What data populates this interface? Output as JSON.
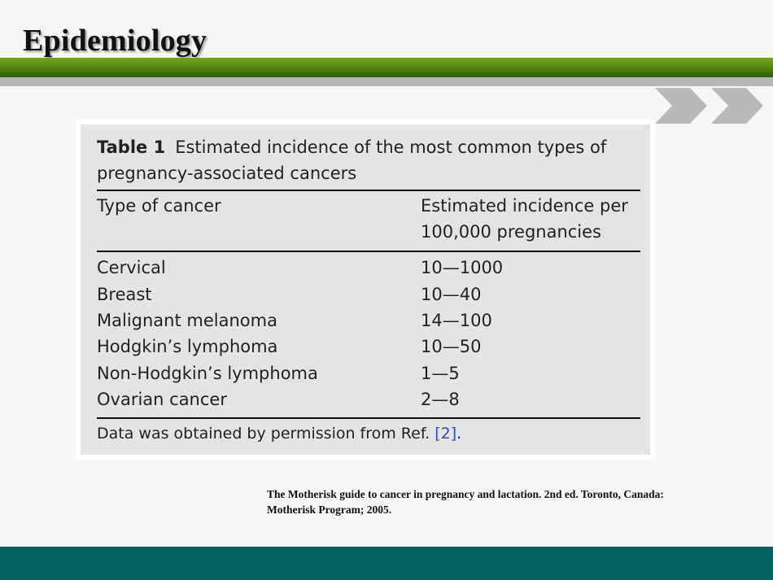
{
  "slide": {
    "title": "Epidemiology"
  },
  "table": {
    "caption_label": "Table 1",
    "caption_text": "Estimated incidence of the most common types of pregnancy-associated cancers",
    "headers": [
      "Type of cancer",
      "Estimated incidence per 100,000 pregnancies"
    ],
    "rows": [
      {
        "type": "Cervical",
        "incidence": "10—1000"
      },
      {
        "type": "Breast",
        "incidence": "10—40"
      },
      {
        "type": "Malignant melanoma",
        "incidence": "14—100"
      },
      {
        "type": "Hodgkin’s lymphoma",
        "incidence": "10—50"
      },
      {
        "type": "Non-Hodgkin’s lymphoma",
        "incidence": "1—5"
      },
      {
        "type": "Ovarian cancer",
        "incidence": "2—8"
      }
    ],
    "footnote_text": "Data was obtained by permission from Ref. ",
    "footnote_ref": "[2]",
    "footnote_end": "."
  },
  "citation": "The Motherisk guide to cancer in pregnancy and lactation. 2nd ed. Toronto, Canada: Motherisk Program; 2005.",
  "colors": {
    "header_green": "#5a8a12",
    "footer_teal": "#03605d",
    "chevron_gray": "#b9b9b9",
    "link_blue": "#2b4bbf"
  },
  "icons": {
    "decoration": "double-chevron-right-icon"
  }
}
